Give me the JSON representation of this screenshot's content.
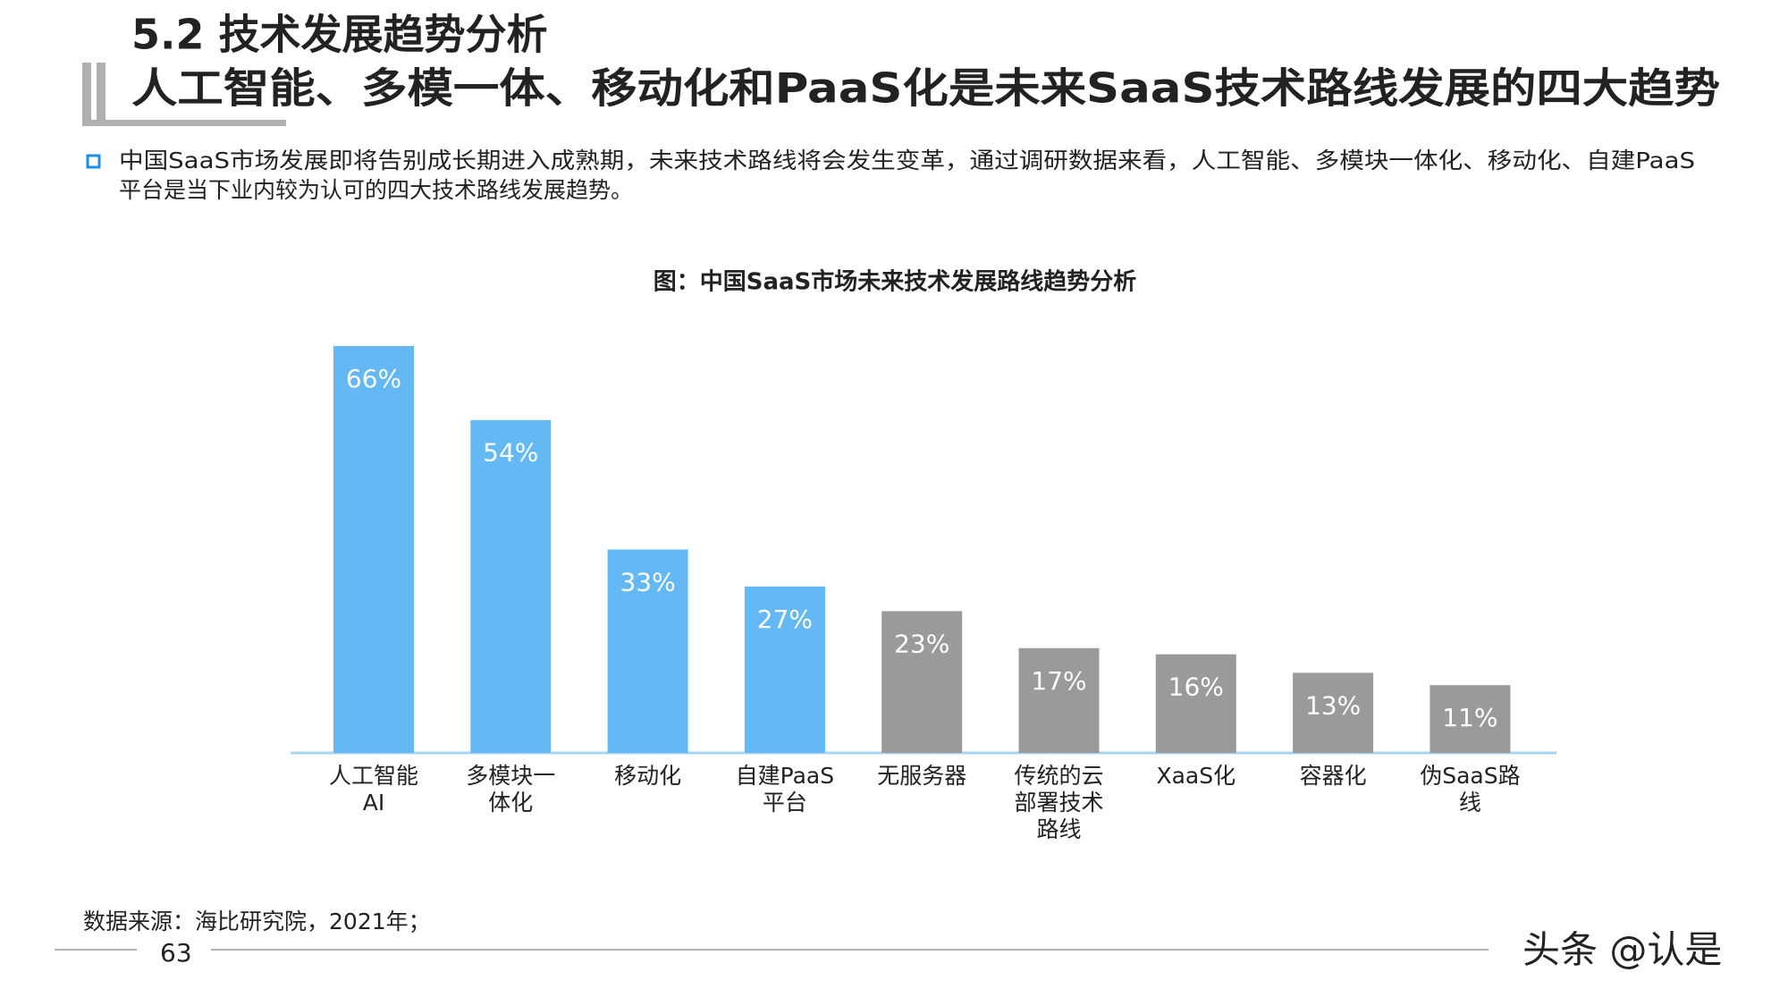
{
  "header": {
    "section": "5.2 技术发展趋势分析",
    "headline": "人工智能、多模一体、移动化和PaaS化是未来SaaS技术路线发展的四大趋势"
  },
  "bullet": {
    "lines": [
      "中国SaaS市场发展即将告别成长期进入成熟期，未来技术路线将会发生变革，通过调研数据来看，人工智能、多模块一体化、移动化、自建PaaS",
      "平台是当下业内较为认可的四大技术路线发展趋势。"
    ]
  },
  "chart_data": {
    "type": "bar",
    "title": "图：中国SaaS市场未来技术发展路线趋势分析",
    "categories": [
      "人工智能\nAI",
      "多模块一\n体化",
      "移动化",
      "自建PaaS\n平台",
      "无服务器",
      "传统的云\n部署技术\n路线",
      "XaaS化",
      "容器化",
      "伪SaaS路\n线"
    ],
    "values": [
      66,
      54,
      33,
      27,
      23,
      17,
      16,
      13,
      11
    ],
    "value_labels": [
      "66%",
      "54%",
      "33%",
      "27%",
      "23%",
      "17%",
      "16%",
      "13%",
      "11%"
    ],
    "colors": [
      "#64b9f5",
      "#64b9f5",
      "#64b9f5",
      "#64b9f5",
      "#9a9a9a",
      "#9a9a9a",
      "#9a9a9a",
      "#9a9a9a",
      "#9a9a9a"
    ],
    "axis_color": "#a9d4f0"
  },
  "footer": {
    "source": "数据来源：海比研究院，2021年；",
    "page": "63",
    "watermark": "头条 @认是"
  }
}
